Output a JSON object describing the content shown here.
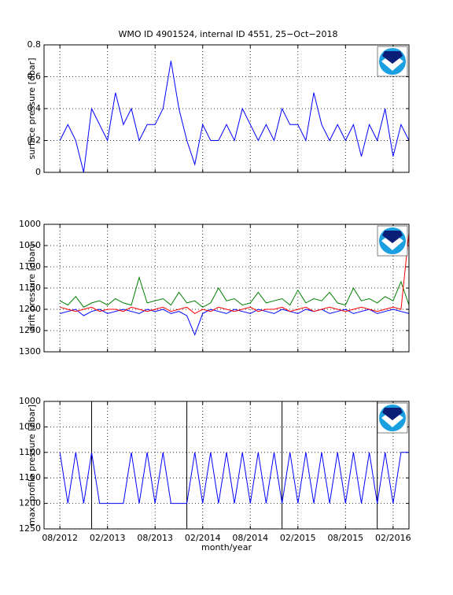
{
  "chart_data": [
    {
      "type": "line",
      "title": "WMO ID 4901524, internal ID 4551, 25−Oct−2018",
      "ylabel": "surface pressure [dbar]",
      "x": [
        "08/2012",
        "09/2012",
        "10/2012",
        "11/2012",
        "12/2012",
        "01/2013",
        "02/2013",
        "03/2013",
        "04/2013",
        "05/2013",
        "06/2013",
        "07/2013",
        "08/2013",
        "09/2013",
        "10/2013",
        "11/2013",
        "12/2013",
        "01/2014",
        "02/2014",
        "03/2014",
        "04/2014",
        "05/2014",
        "06/2014",
        "07/2014",
        "08/2014",
        "09/2014",
        "10/2014",
        "11/2014",
        "12/2014",
        "01/2015",
        "02/2015",
        "03/2015",
        "04/2015",
        "05/2015",
        "06/2015",
        "07/2015",
        "08/2015",
        "09/2015",
        "10/2015",
        "11/2015",
        "12/2015",
        "01/2016",
        "02/2016",
        "03/2016",
        "04/2016"
      ],
      "series": [
        {
          "color": "#0000ff",
          "values": [
            0.2,
            0.3,
            0.2,
            0,
            0.4,
            0.3,
            0.2,
            0.5,
            0.3,
            0.4,
            0.2,
            0.3,
            0.3,
            0.4,
            0.7,
            0.4,
            0.2,
            0.05,
            0.3,
            0.2,
            0.2,
            0.3,
            0.2,
            0.4,
            0.3,
            0.2,
            0.3,
            0.2,
            0.4,
            0.3,
            0.3,
            0.2,
            0.5,
            0.3,
            0.2,
            0.3,
            0.2,
            0.3,
            0.1,
            0.3,
            0.2,
            0.4,
            0.1,
            0.3,
            0.2
          ]
        }
      ],
      "xlim": [
        "06/2012",
        "04/2016"
      ],
      "xticks": [
        "08/2012",
        "02/2013",
        "08/2013",
        "02/2014",
        "08/2014",
        "02/2015",
        "08/2015",
        "02/2016"
      ],
      "show_xtick_labels": false,
      "ylim": [
        0,
        0.8
      ],
      "yticks": [
        0,
        0.2,
        0.4,
        0.6,
        0.8
      ],
      "y_inverted": false,
      "grid": true
    },
    {
      "type": "line",
      "ylabel": "drift pressure [dbar]",
      "x": [
        "08/2012",
        "09/2012",
        "10/2012",
        "11/2012",
        "12/2012",
        "01/2013",
        "02/2013",
        "03/2013",
        "04/2013",
        "05/2013",
        "06/2013",
        "07/2013",
        "08/2013",
        "09/2013",
        "10/2013",
        "11/2013",
        "12/2013",
        "01/2014",
        "02/2014",
        "03/2014",
        "04/2014",
        "05/2014",
        "06/2014",
        "07/2014",
        "08/2014",
        "09/2014",
        "10/2014",
        "11/2014",
        "12/2014",
        "01/2015",
        "02/2015",
        "03/2015",
        "04/2015",
        "05/2015",
        "06/2015",
        "07/2015",
        "08/2015",
        "09/2015",
        "10/2015",
        "11/2015",
        "12/2015",
        "01/2016",
        "02/2016",
        "03/2016",
        "04/2016"
      ],
      "series": [
        {
          "color": "#0000ff",
          "values": [
            1210,
            1205,
            1200,
            1215,
            1205,
            1200,
            1210,
            1205,
            1200,
            1205,
            1210,
            1200,
            1205,
            1200,
            1210,
            1205,
            1215,
            1260,
            1210,
            1200,
            1205,
            1210,
            1200,
            1205,
            1210,
            1200,
            1205,
            1210,
            1200,
            1205,
            1210,
            1200,
            1205,
            1200,
            1210,
            1205,
            1200,
            1210,
            1205,
            1200,
            1210,
            1205,
            1200,
            1205,
            1210
          ]
        },
        {
          "color": "#008000",
          "values": [
            1180,
            1190,
            1170,
            1195,
            1185,
            1180,
            1190,
            1175,
            1185,
            1190,
            1125,
            1185,
            1180,
            1175,
            1190,
            1160,
            1185,
            1180,
            1195,
            1185,
            1150,
            1180,
            1175,
            1190,
            1185,
            1160,
            1185,
            1180,
            1175,
            1190,
            1155,
            1185,
            1175,
            1180,
            1160,
            1185,
            1190,
            1150,
            1180,
            1175,
            1185,
            1170,
            1180,
            1135,
            1190
          ]
        },
        {
          "color": "#ff0000",
          "values": [
            1195,
            1200,
            1205,
            1200,
            1195,
            1205,
            1200,
            1200,
            1205,
            1195,
            1200,
            1205,
            1200,
            1195,
            1205,
            1200,
            1195,
            1210,
            1200,
            1205,
            1195,
            1200,
            1205,
            1200,
            1195,
            1205,
            1200,
            1200,
            1195,
            1205,
            1200,
            1195,
            1205,
            1200,
            1195,
            1200,
            1205,
            1200,
            1195,
            1200,
            1205,
            1200,
            1195,
            1200,
            1020
          ]
        }
      ],
      "xlim": [
        "06/2012",
        "04/2016"
      ],
      "xticks": [
        "08/2012",
        "02/2013",
        "08/2013",
        "02/2014",
        "08/2014",
        "02/2015",
        "08/2015",
        "02/2016"
      ],
      "show_xtick_labels": false,
      "ylim": [
        1000,
        1300
      ],
      "yticks": [
        1000,
        1050,
        1100,
        1150,
        1200,
        1250,
        1300
      ],
      "y_inverted": true,
      "grid": true
    },
    {
      "type": "line",
      "ylabel": "max. profile pressure [dbar]",
      "xlabel": "month/year",
      "x": [
        "08/2012",
        "09/2012",
        "10/2012",
        "11/2012",
        "12/2012",
        "01/2013",
        "02/2013",
        "03/2013",
        "04/2013",
        "05/2013",
        "06/2013",
        "07/2013",
        "08/2013",
        "09/2013",
        "10/2013",
        "11/2013",
        "12/2013",
        "01/2014",
        "02/2014",
        "03/2014",
        "04/2014",
        "05/2014",
        "06/2014",
        "07/2014",
        "08/2014",
        "09/2014",
        "10/2014",
        "11/2014",
        "12/2014",
        "01/2015",
        "02/2015",
        "03/2015",
        "04/2015",
        "05/2015",
        "06/2015",
        "07/2015",
        "08/2015",
        "09/2015",
        "10/2015",
        "11/2015",
        "12/2015",
        "01/2016",
        "02/2016",
        "03/2016",
        "04/2016"
      ],
      "series": [
        {
          "color": "#0000ff",
          "values": [
            1100,
            1200,
            1100,
            1200,
            1100,
            1200,
            1200,
            1200,
            1200,
            1100,
            1200,
            1100,
            1200,
            1100,
            1200,
            1200,
            1200,
            1100,
            1200,
            1100,
            1200,
            1100,
            1200,
            1100,
            1200,
            1100,
            1200,
            1100,
            1200,
            1100,
            1200,
            1100,
            1200,
            1100,
            1200,
            1100,
            1200,
            1100,
            1200,
            1100,
            1200,
            1100,
            1200,
            1100,
            1100
          ]
        }
      ],
      "vlines": [
        "12/2012",
        "12/2013",
        "12/2014",
        "12/2015"
      ],
      "xlim": [
        "06/2012",
        "04/2016"
      ],
      "xticks": [
        "08/2012",
        "02/2013",
        "08/2013",
        "02/2014",
        "08/2014",
        "02/2015",
        "08/2015",
        "02/2016"
      ],
      "show_xtick_labels": true,
      "ylim": [
        1000,
        1250
      ],
      "yticks": [
        1000,
        1050,
        1100,
        1150,
        1200,
        1250
      ],
      "y_inverted": true,
      "grid": true
    }
  ]
}
